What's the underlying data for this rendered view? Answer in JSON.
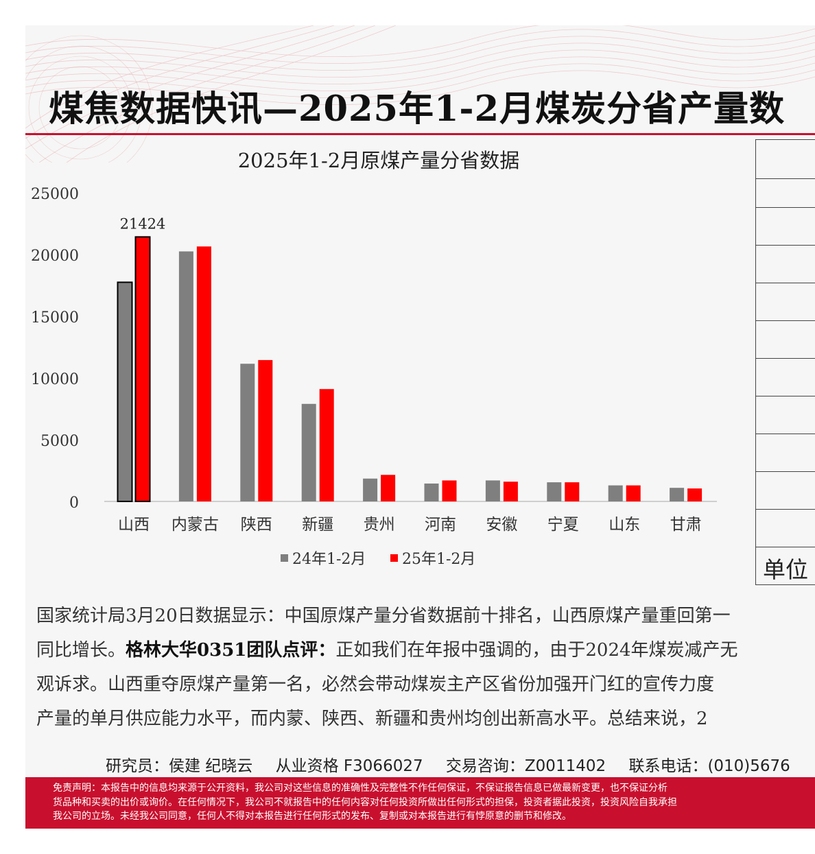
{
  "header": {
    "title": "煤焦数据快讯—2025年1-2月煤炭分省产量数"
  },
  "chart_data": {
    "type": "bar",
    "title": "2025年1-2月原煤产量分省数据",
    "categories": [
      "山西",
      "内蒙古",
      "陕西",
      "新疆",
      "贵州",
      "河南",
      "安徽",
      "宁夏",
      "山东",
      "甘肃"
    ],
    "series": [
      {
        "name": "24年1-2月",
        "color": "#7f7f7f",
        "values": [
          17750,
          20250,
          11150,
          7900,
          1850,
          1450,
          1700,
          1550,
          1300,
          1100
        ]
      },
      {
        "name": "25年1-2月",
        "color": "#ff0000",
        "values": [
          21424,
          20650,
          11450,
          9100,
          2150,
          1700,
          1600,
          1550,
          1300,
          1050
        ]
      }
    ],
    "yticks": [
      "0",
      "5000",
      "10000",
      "15000",
      "20000",
      "25000"
    ],
    "ylim": [
      0,
      25000
    ],
    "data_label": "21424",
    "highlight_category": "山西",
    "legend_position": "bottom"
  },
  "side_table": {
    "unit_label": "单位"
  },
  "commentary": {
    "line1": "国家统计局3月20日数据显示：中国原煤产量分省数据前十排名，山西原煤产量重回第一",
    "line2_pre": "同比增长。",
    "line2_bold": "格林大华0351团队点评：",
    "line2_post": "正如我们在年报中强调的，由于2024年煤炭减产无",
    "line3": "观诉求。山西重夺原煤产量第一名，必然会带动煤炭主产区省份加强开门红的宣传力度",
    "line4": "产量的单月供应能力水平，而内蒙、陕西、新疆和贵州均创出新高水平。总结来说，2"
  },
  "contact": {
    "researcher": "研究员：侯建 纪晓云",
    "license": "从业资格 F3066027",
    "advisory": "交易咨询：Z0011402",
    "phone": "联系电话：(010)5676"
  },
  "disclaimer": {
    "line1": "免责声明：本报告中的信息均来源于公开资料，我公司对这些信息的准确性及完整性不作任何保证，不保证报告信息已做最新变更，也不保证分析",
    "line2": "货品种和买卖的出价或询价。在任何情况下，我公司不就报告中的任何内容对任何投资所做出任何形式的担保，投资者据此投资，投资风险自我承担",
    "line3": "我公司的立场。未经我公司同意，任何人不得对本报告进行任何形式的发布、复制或对本报告进行有悖原意的删节和修改。"
  }
}
